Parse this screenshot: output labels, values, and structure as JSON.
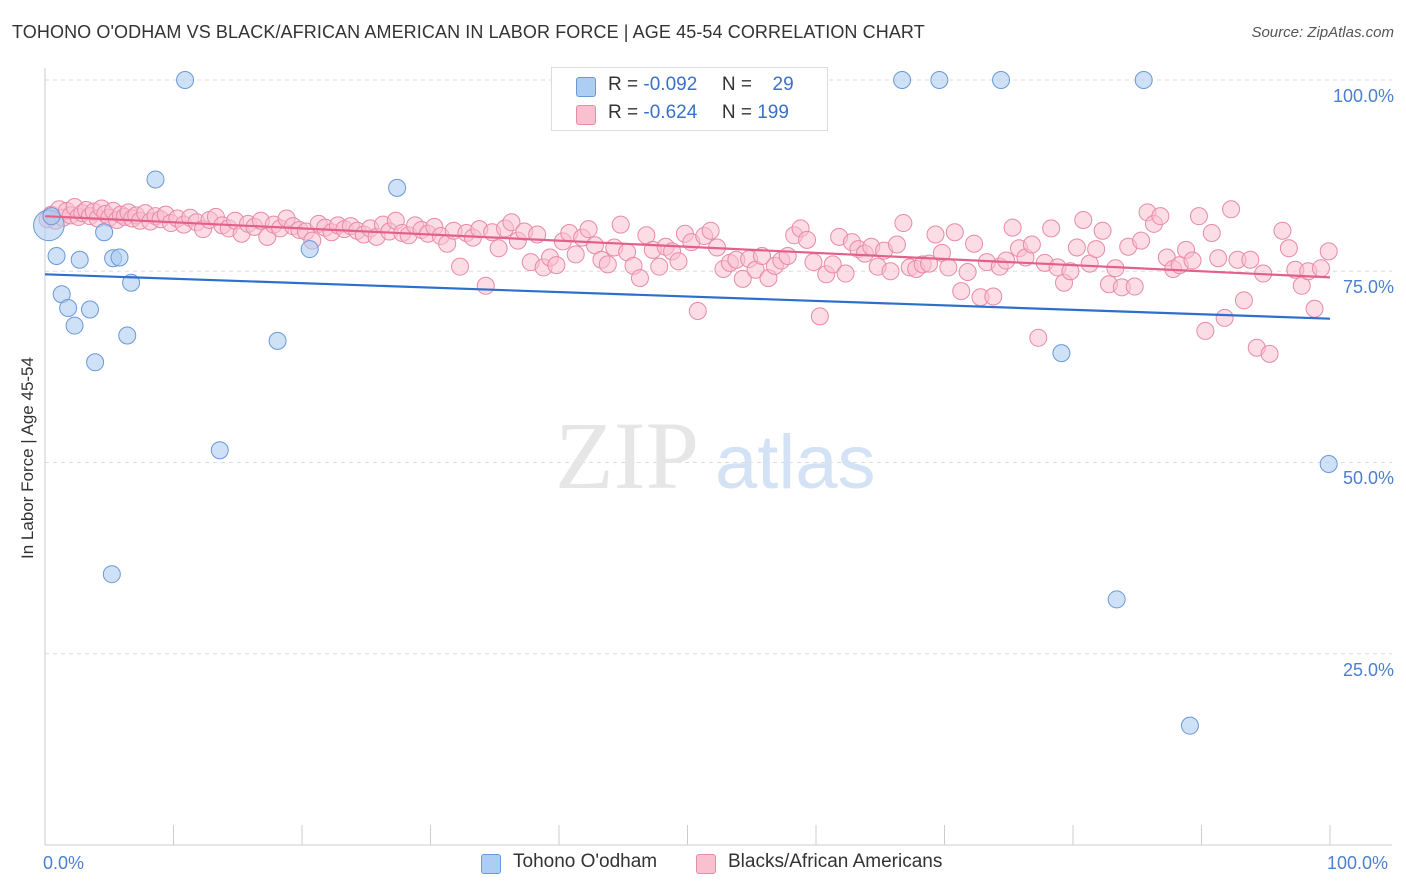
{
  "title": "TOHONO O'ODHAM VS BLACK/AFRICAN AMERICAN IN LABOR FORCE | AGE 45-54 CORRELATION CHART",
  "source": "Source: ZipAtlas.com",
  "legend": {
    "row1": {
      "r_label": "R =",
      "r_value": "-0.092",
      "n_label": "N =",
      "n_value": "29"
    },
    "row2": {
      "r_label": "R =",
      "r_value": "-0.624",
      "n_label": "N =",
      "n_value": "199"
    }
  },
  "watermark": {
    "zip": "ZIP",
    "atlas": "atlas"
  },
  "colors": {
    "blue_fill": "#aecdf2",
    "blue_stroke": "#6a98d8",
    "blue_line": "#2d6fcc",
    "pink_fill": "#f9c0d0",
    "pink_stroke": "#e88aa8",
    "pink_line": "#e3608b",
    "tick_label": "#4a7fd1"
  },
  "chart_data": {
    "type": "scatter",
    "title": "TOHONO O'ODHAM VS BLACK/AFRICAN AMERICAN IN LABOR FORCE | AGE 45-54 CORRELATION CHART",
    "xlabel": "",
    "ylabel": "In Labor Force | Age 45-54",
    "xlim": [
      0,
      100
    ],
    "ylim": [
      0,
      100
    ],
    "x_tick_labels": [
      "0.0%",
      "100.0%"
    ],
    "y_tick_labels": [
      "25.0%",
      "50.0%",
      "75.0%",
      "100.0%"
    ],
    "grid": "horizontal dashed",
    "legend_position": "top-center",
    "series": [
      {
        "name": "Tohono O'odham",
        "trend": [
          [
            0,
            74.6
          ],
          [
            100,
            68.8
          ]
        ],
        "points": [
          [
            0.3,
            81.0,
            1.8
          ],
          [
            0.5,
            82.2,
            1.0
          ],
          [
            0.9,
            77.0,
            1.0
          ],
          [
            1.3,
            72.0,
            1.0
          ],
          [
            1.8,
            70.2,
            1.0
          ],
          [
            2.3,
            67.9,
            1.0
          ],
          [
            2.7,
            76.5,
            1.0
          ],
          [
            3.5,
            70.0,
            1.0
          ],
          [
            3.9,
            63.1,
            1.0
          ],
          [
            4.6,
            80.1,
            1.0
          ],
          [
            5.2,
            35.4,
            1.0
          ],
          [
            5.3,
            76.7,
            1.0
          ],
          [
            5.8,
            76.8,
            1.0
          ],
          [
            6.7,
            73.5,
            1.0
          ],
          [
            6.4,
            66.6,
            1.0
          ],
          [
            8.6,
            87.0,
            1.0
          ],
          [
            10.9,
            100.0,
            1.0
          ],
          [
            13.6,
            51.6,
            1.0
          ],
          [
            18.1,
            65.9,
            1.0
          ],
          [
            20.6,
            77.9,
            1.0
          ],
          [
            27.4,
            85.9,
            1.0
          ],
          [
            66.7,
            100.0,
            1.0
          ],
          [
            69.6,
            100.0,
            1.0
          ],
          [
            74.4,
            100.0,
            1.0
          ],
          [
            85.5,
            100.0,
            1.0
          ],
          [
            79.1,
            64.3,
            1.0
          ],
          [
            83.4,
            32.1,
            1.0
          ],
          [
            89.1,
            15.6,
            1.0
          ],
          [
            99.9,
            49.8,
            1.0
          ]
        ]
      },
      {
        "name": "Blacks/African Americans",
        "trend": [
          [
            0,
            82.2
          ],
          [
            100,
            74.2
          ]
        ],
        "points": [
          [
            0.2,
            81.8
          ],
          [
            0.5,
            82.4
          ],
          [
            0.8,
            81.6
          ],
          [
            1.1,
            83.1
          ],
          [
            1.4,
            82.0
          ],
          [
            1.7,
            82.9
          ],
          [
            2.0,
            82.3
          ],
          [
            2.3,
            83.4
          ],
          [
            2.6,
            82.1
          ],
          [
            2.9,
            82.6
          ],
          [
            3.2,
            83.0
          ],
          [
            3.5,
            82.2
          ],
          [
            3.8,
            82.8
          ],
          [
            4.1,
            81.9
          ],
          [
            4.4,
            83.2
          ],
          [
            4.7,
            82.5
          ],
          [
            5.0,
            82.0
          ],
          [
            5.3,
            82.9
          ],
          [
            5.6,
            81.7
          ],
          [
            5.9,
            82.4
          ],
          [
            6.2,
            82.1
          ],
          [
            6.5,
            82.7
          ],
          [
            6.8,
            81.9
          ],
          [
            7.1,
            82.3
          ],
          [
            7.4,
            81.6
          ],
          [
            7.8,
            82.6
          ],
          [
            8.2,
            81.5
          ],
          [
            8.6,
            82.2
          ],
          [
            9.0,
            81.8
          ],
          [
            9.4,
            82.4
          ],
          [
            9.8,
            81.3
          ],
          [
            10.3,
            81.9
          ],
          [
            10.8,
            81.1
          ],
          [
            11.3,
            82.0
          ],
          [
            11.8,
            81.4
          ],
          [
            12.3,
            80.5
          ],
          [
            12.8,
            81.7
          ],
          [
            13.3,
            82.1
          ],
          [
            13.8,
            81.0
          ],
          [
            14.3,
            80.6
          ],
          [
            14.8,
            81.6
          ],
          [
            15.3,
            79.9
          ],
          [
            15.8,
            81.2
          ],
          [
            16.3,
            80.8
          ],
          [
            16.8,
            81.6
          ],
          [
            17.3,
            79.5
          ],
          [
            17.8,
            81.1
          ],
          [
            18.3,
            80.6
          ],
          [
            18.8,
            81.9
          ],
          [
            19.3,
            80.9
          ],
          [
            19.8,
            80.4
          ],
          [
            20.3,
            80.2
          ],
          [
            20.8,
            79.0
          ],
          [
            21.3,
            81.2
          ],
          [
            21.8,
            80.7
          ],
          [
            22.3,
            80.1
          ],
          [
            22.8,
            81.0
          ],
          [
            23.3,
            80.5
          ],
          [
            23.8,
            80.9
          ],
          [
            24.3,
            80.3
          ],
          [
            24.8,
            79.8
          ],
          [
            25.3,
            80.6
          ],
          [
            25.8,
            79.5
          ],
          [
            26.3,
            81.1
          ],
          [
            26.8,
            80.2
          ],
          [
            27.3,
            81.6
          ],
          [
            27.8,
            80.0
          ],
          [
            28.3,
            79.7
          ],
          [
            28.8,
            81.0
          ],
          [
            29.3,
            80.4
          ],
          [
            29.8,
            79.9
          ],
          [
            30.3,
            80.8
          ],
          [
            30.8,
            79.6
          ],
          [
            31.3,
            78.6
          ],
          [
            31.8,
            80.3
          ],
          [
            32.3,
            75.6
          ],
          [
            32.8,
            80.0
          ],
          [
            33.3,
            79.4
          ],
          [
            33.8,
            80.5
          ],
          [
            34.3,
            73.1
          ],
          [
            34.8,
            80.1
          ],
          [
            35.3,
            78.0
          ],
          [
            35.8,
            80.6
          ],
          [
            36.3,
            81.4
          ],
          [
            36.8,
            79.0
          ],
          [
            37.3,
            80.2
          ],
          [
            37.8,
            76.2
          ],
          [
            38.3,
            79.8
          ],
          [
            38.8,
            75.5
          ],
          [
            39.3,
            76.8
          ],
          [
            39.8,
            75.8
          ],
          [
            40.3,
            78.9
          ],
          [
            40.8,
            80.0
          ],
          [
            41.3,
            77.2
          ],
          [
            41.8,
            79.4
          ],
          [
            42.3,
            80.5
          ],
          [
            42.8,
            78.4
          ],
          [
            43.3,
            76.5
          ],
          [
            43.8,
            75.9
          ],
          [
            44.3,
            78.1
          ],
          [
            44.8,
            81.1
          ],
          [
            45.3,
            77.5
          ],
          [
            45.8,
            75.7
          ],
          [
            46.3,
            74.1
          ],
          [
            46.8,
            79.7
          ],
          [
            47.3,
            77.8
          ],
          [
            47.8,
            75.6
          ],
          [
            48.3,
            78.2
          ],
          [
            48.8,
            77.6
          ],
          [
            49.3,
            76.3
          ],
          [
            49.8,
            79.9
          ],
          [
            50.3,
            78.8
          ],
          [
            50.8,
            69.8
          ],
          [
            51.3,
            79.6
          ],
          [
            51.8,
            80.3
          ],
          [
            52.3,
            78.1
          ],
          [
            52.8,
            75.3
          ],
          [
            53.3,
            76.1
          ],
          [
            53.8,
            76.5
          ],
          [
            54.3,
            74.0
          ],
          [
            54.8,
            76.6
          ],
          [
            55.3,
            75.2
          ],
          [
            55.8,
            77.0
          ],
          [
            56.3,
            74.1
          ],
          [
            56.8,
            75.7
          ],
          [
            57.3,
            76.4
          ],
          [
            57.8,
            77.0
          ],
          [
            58.3,
            79.7
          ],
          [
            58.8,
            80.6
          ],
          [
            59.3,
            79.1
          ],
          [
            59.8,
            76.2
          ],
          [
            60.3,
            69.1
          ],
          [
            60.8,
            74.6
          ],
          [
            61.3,
            75.9
          ],
          [
            61.8,
            79.5
          ],
          [
            62.3,
            74.7
          ],
          [
            62.8,
            78.8
          ],
          [
            63.3,
            77.9
          ],
          [
            63.8,
            77.3
          ],
          [
            64.3,
            78.2
          ],
          [
            64.8,
            75.6
          ],
          [
            65.3,
            77.7
          ],
          [
            65.8,
            75.0
          ],
          [
            66.3,
            78.5
          ],
          [
            66.8,
            81.3
          ],
          [
            67.3,
            75.5
          ],
          [
            67.8,
            75.3
          ],
          [
            68.3,
            75.9
          ],
          [
            68.8,
            76.0
          ],
          [
            69.3,
            79.8
          ],
          [
            69.8,
            77.4
          ],
          [
            70.3,
            75.5
          ],
          [
            70.8,
            80.1
          ],
          [
            71.3,
            72.4
          ],
          [
            71.8,
            74.9
          ],
          [
            72.3,
            78.6
          ],
          [
            72.8,
            71.6
          ],
          [
            73.3,
            76.2
          ],
          [
            73.8,
            71.7
          ],
          [
            74.3,
            75.6
          ],
          [
            74.8,
            76.4
          ],
          [
            75.3,
            80.7
          ],
          [
            75.8,
            78.0
          ],
          [
            76.3,
            76.8
          ],
          [
            76.8,
            78.5
          ],
          [
            77.3,
            66.3
          ],
          [
            77.8,
            76.1
          ],
          [
            78.3,
            80.6
          ],
          [
            78.8,
            75.5
          ],
          [
            79.3,
            73.5
          ],
          [
            79.8,
            75.0
          ],
          [
            80.3,
            78.1
          ],
          [
            80.8,
            81.7
          ],
          [
            81.3,
            76.0
          ],
          [
            81.8,
            77.9
          ],
          [
            82.3,
            80.3
          ],
          [
            82.8,
            73.3
          ],
          [
            83.3,
            75.4
          ],
          [
            83.8,
            72.9
          ],
          [
            84.3,
            78.2
          ],
          [
            84.8,
            73.0
          ],
          [
            85.3,
            79.0
          ],
          [
            85.8,
            82.7
          ],
          [
            86.3,
            81.2
          ],
          [
            86.8,
            82.2
          ],
          [
            87.3,
            76.8
          ],
          [
            87.8,
            75.3
          ],
          [
            88.3,
            75.8
          ],
          [
            88.8,
            77.8
          ],
          [
            89.3,
            76.4
          ],
          [
            89.8,
            82.2
          ],
          [
            90.3,
            67.2
          ],
          [
            90.8,
            80.0
          ],
          [
            91.3,
            76.7
          ],
          [
            91.8,
            68.9
          ],
          [
            92.3,
            83.1
          ],
          [
            92.8,
            76.5
          ],
          [
            93.3,
            71.2
          ],
          [
            93.8,
            76.5
          ],
          [
            94.3,
            65.0
          ],
          [
            94.8,
            74.7
          ],
          [
            95.3,
            64.2
          ],
          [
            96.3,
            80.3
          ],
          [
            96.8,
            78.0
          ],
          [
            97.3,
            75.2
          ],
          [
            97.8,
            73.1
          ],
          [
            98.3,
            75.0
          ],
          [
            98.8,
            70.1
          ],
          [
            99.3,
            75.4
          ],
          [
            99.9,
            77.6
          ]
        ]
      }
    ]
  },
  "bottom_legend": {
    "series1": "Tohono O'odham",
    "series2": "Blacks/African Americans"
  }
}
